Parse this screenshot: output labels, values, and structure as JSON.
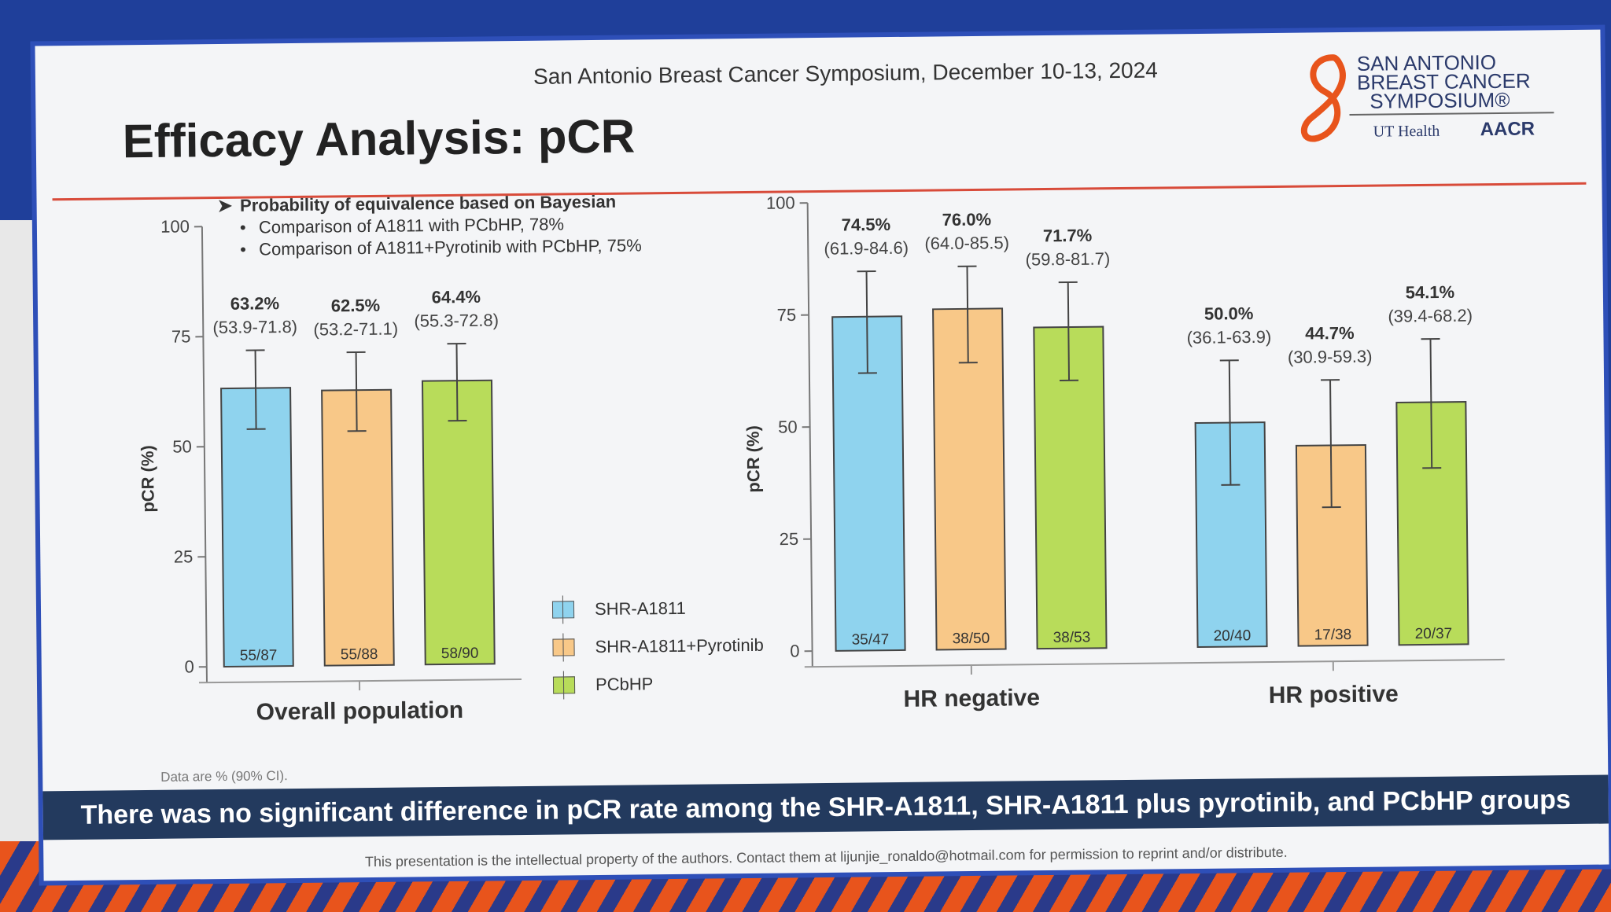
{
  "header": {
    "conference": "San Antonio Breast Cancer Symposium, December 10-13, 2024",
    "title": "Efficacy Analysis: pCR"
  },
  "logo": {
    "line1": "SAN ANTONIO",
    "line2": "BREAST CANCER",
    "line3": "SYMPOSIUM®",
    "ut_health": "UT Health",
    "aacr": "AACR"
  },
  "bullets": {
    "main": "Probability of equivalence based on Bayesian",
    "items": [
      "Comparison of A1811 with PCbHP, 78%",
      "Comparison of A1811+Pyrotinib with PCbHP, 75%"
    ]
  },
  "colors": {
    "blue": "#8fd3ee",
    "orange": "#f8c888",
    "green": "#b8dc5a"
  },
  "chart_data": [
    {
      "type": "bar",
      "ylabel": "pCR (%)",
      "ylim": [
        0,
        100
      ],
      "yticks": [
        "0",
        "25",
        "50",
        "75",
        "100"
      ],
      "groups": [
        {
          "label": "Overall population",
          "bars": [
            {
              "series": "SHR-A1811",
              "value": 63.2,
              "ci_low": 53.9,
              "ci_high": 71.8,
              "pct_label": "63.2%",
              "ci_label": "(53.9-71.8)",
              "n_label": "55/87"
            },
            {
              "series": "SHR-A1811+Pyrotinib",
              "value": 62.5,
              "ci_low": 53.2,
              "ci_high": 71.1,
              "pct_label": "62.5%",
              "ci_label": "(53.2-71.1)",
              "n_label": "55/88"
            },
            {
              "series": "PCbHP",
              "value": 64.4,
              "ci_low": 55.3,
              "ci_high": 72.8,
              "pct_label": "64.4%",
              "ci_label": "(55.3-72.8)",
              "n_label": "58/90"
            }
          ]
        }
      ]
    },
    {
      "type": "bar",
      "ylabel": "pCR (%)",
      "ylim": [
        0,
        100
      ],
      "yticks": [
        "0",
        "25",
        "50",
        "75",
        "100"
      ],
      "groups": [
        {
          "label": "HR negative",
          "bars": [
            {
              "series": "SHR-A1811",
              "value": 74.5,
              "ci_low": 61.9,
              "ci_high": 84.6,
              "pct_label": "74.5%",
              "ci_label": "(61.9-84.6)",
              "n_label": "35/47"
            },
            {
              "series": "SHR-A1811+Pyrotinib",
              "value": 76.0,
              "ci_low": 64.0,
              "ci_high": 85.5,
              "pct_label": "76.0%",
              "ci_label": "(64.0-85.5)",
              "n_label": "38/50"
            },
            {
              "series": "PCbHP",
              "value": 71.7,
              "ci_low": 59.8,
              "ci_high": 81.7,
              "pct_label": "71.7%",
              "ci_label": "(59.8-81.7)",
              "n_label": "38/53"
            }
          ]
        },
        {
          "label": "HR positive",
          "bars": [
            {
              "series": "SHR-A1811",
              "value": 50.0,
              "ci_low": 36.1,
              "ci_high": 63.9,
              "pct_label": "50.0%",
              "ci_label": "(36.1-63.9)",
              "n_label": "20/40"
            },
            {
              "series": "SHR-A1811+Pyrotinib",
              "value": 44.7,
              "ci_low": 30.9,
              "ci_high": 59.3,
              "pct_label": "44.7%",
              "ci_label": "(30.9-59.3)",
              "n_label": "17/38"
            },
            {
              "series": "PCbHP",
              "value": 54.1,
              "ci_low": 39.4,
              "ci_high": 68.2,
              "pct_label": "54.1%",
              "ci_label": "(39.4-68.2)",
              "n_label": "20/37"
            }
          ]
        }
      ]
    }
  ],
  "legend": [
    {
      "label": "SHR-A1811",
      "color": "#8fd3ee"
    },
    {
      "label": "SHR-A1811+Pyrotinib",
      "color": "#f8c888"
    },
    {
      "label": "PCbHP",
      "color": "#b8dc5a"
    }
  ],
  "footnote": "Data are % (90% CI).",
  "banner": "There was no significant difference in pCR rate among the SHR-A1811, SHR-A1811 plus pyrotinib, and PCbHP groups",
  "copyright": "This presentation is the intellectual property of the authors. Contact them at lijunjie_ronaldo@hotmail.com for permission to reprint and/or distribute."
}
